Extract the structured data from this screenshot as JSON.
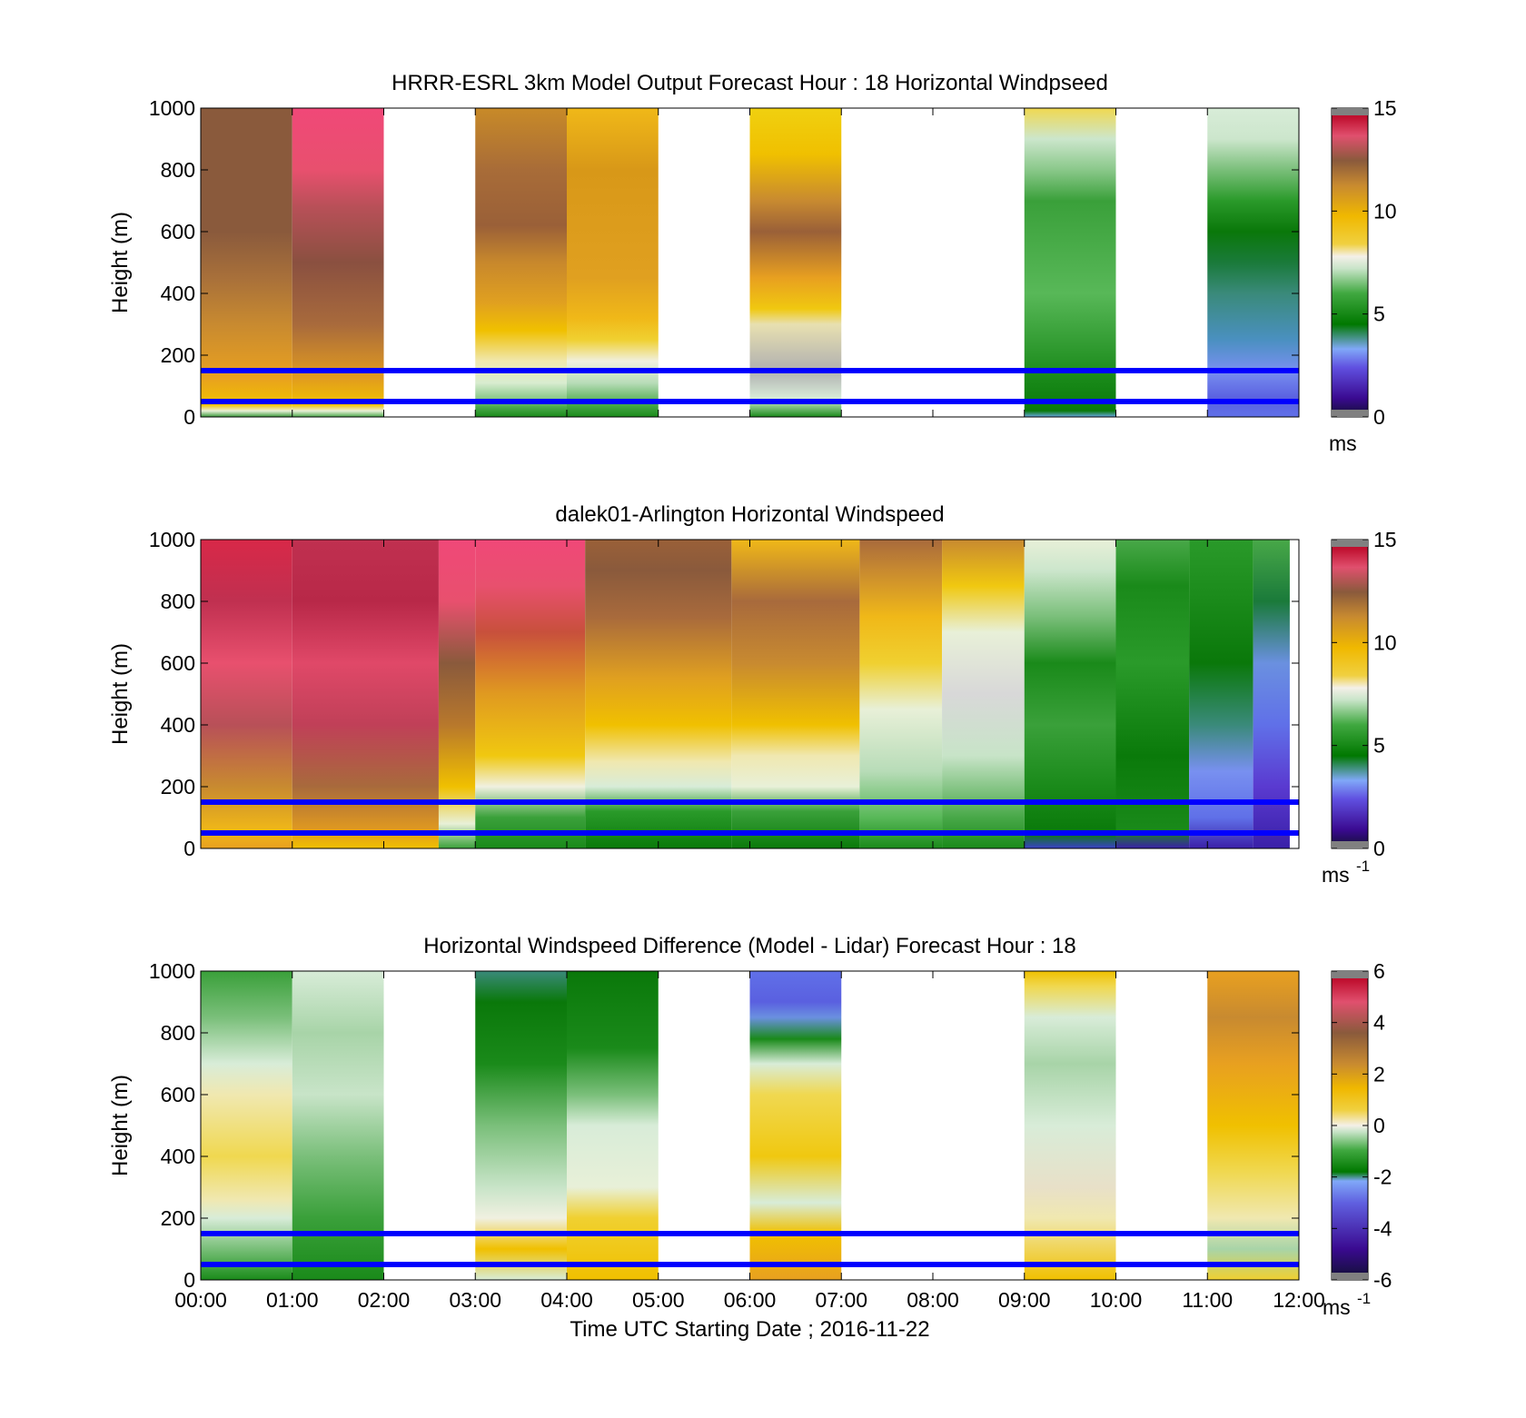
{
  "figure": {
    "xlabel": "Time UTC  Starting Date ; 2016-11-22",
    "x_ticks": [
      "00:00",
      "01:00",
      "02:00",
      "03:00",
      "04:00",
      "05:00",
      "06:00",
      "07:00",
      "08:00",
      "09:00",
      "10:00",
      "11:00",
      "12:00"
    ],
    "reference_lines": {
      "heights_m": [
        150,
        50
      ],
      "color": "#0000ff"
    }
  },
  "chart_data": [
    {
      "type": "heatmap",
      "title": "HRRR-ESRL 3km Model Output   Forecast Hour : 18 Horizontal Windpseed",
      "ylabel": "Height (m)",
      "ylim": [
        0,
        1000
      ],
      "y_ticks": [
        "0",
        "200",
        "400",
        "600",
        "800",
        "1000"
      ],
      "x_range_hours": [
        0,
        12
      ],
      "colorbar": {
        "range": [
          0,
          15
        ],
        "ticks": [
          "0",
          "5",
          "10",
          "15"
        ],
        "unit": "ms",
        "unit_sup": ""
      },
      "columns": [
        {
          "t0": 0,
          "t1": 1,
          "stops": [
            [
              0,
              "#3a9a3a"
            ],
            [
              20,
              "#e8f0d8"
            ],
            [
              40,
              "#f0c000"
            ],
            [
              130,
              "#e8a020"
            ],
            [
              300,
              "#c88a30"
            ],
            [
              450,
              "#a8703a"
            ],
            [
              600,
              "#8a5a3c"
            ],
            [
              1000,
              "#8a5a3c"
            ]
          ]
        },
        {
          "t0": 1,
          "t1": 2,
          "stops": [
            [
              0,
              "#4aa84a"
            ],
            [
              20,
              "#e8f0d8"
            ],
            [
              40,
              "#f0c000"
            ],
            [
              130,
              "#e09a20"
            ],
            [
              300,
              "#a86a3c"
            ],
            [
              500,
              "#8a5040"
            ],
            [
              680,
              "#b85058"
            ],
            [
              800,
              "#e8506e"
            ],
            [
              1000,
              "#f04878"
            ]
          ]
        },
        {
          "t0": 3,
          "t1": 4,
          "stops": [
            [
              0,
              "#1a8a1a"
            ],
            [
              30,
              "#48a848"
            ],
            [
              60,
              "#8ac88a"
            ],
            [
              110,
              "#d8ecd0"
            ],
            [
              180,
              "#f0e8b0"
            ],
            [
              280,
              "#f0c000"
            ],
            [
              370,
              "#e0a020"
            ],
            [
              500,
              "#c8882c"
            ],
            [
              620,
              "#9a6038"
            ],
            [
              800,
              "#a86c38"
            ],
            [
              1000,
              "#c88a28"
            ]
          ]
        },
        {
          "t0": 4,
          "t1": 5,
          "stops": [
            [
              0,
              "#1a8a1a"
            ],
            [
              40,
              "#48a848"
            ],
            [
              110,
              "#b8dcb8"
            ],
            [
              180,
              "#f0f0e0"
            ],
            [
              250,
              "#f0d030"
            ],
            [
              320,
              "#f0b818"
            ],
            [
              450,
              "#e0a020"
            ],
            [
              800,
              "#d89818"
            ],
            [
              1000,
              "#f0b818"
            ]
          ]
        },
        {
          "t0": 6,
          "t1": 7,
          "stops": [
            [
              0,
              "#1a8a1a"
            ],
            [
              30,
              "#7abf7a"
            ],
            [
              60,
              "#d8ecd8"
            ],
            [
              150,
              "#b0b0b0"
            ],
            [
              300,
              "#e8e0b0"
            ],
            [
              350,
              "#f0c810"
            ],
            [
              450,
              "#e8a020"
            ],
            [
              600,
              "#9a6038"
            ],
            [
              700,
              "#c88a30"
            ],
            [
              850,
              "#f0c000"
            ],
            [
              1000,
              "#f0d010"
            ]
          ]
        },
        {
          "t0": 9,
          "t1": 10,
          "stops": [
            [
              0,
              "#6aa8e8"
            ],
            [
              20,
              "#0a7a0a"
            ],
            [
              130,
              "#1a8a1a"
            ],
            [
              400,
              "#58b858"
            ],
            [
              700,
              "#3aa03a"
            ],
            [
              800,
              "#8ac88a"
            ],
            [
              900,
              "#cce6cc"
            ],
            [
              1000,
              "#f0d850"
            ]
          ]
        },
        {
          "t0": 11,
          "t1": 12,
          "stops": [
            [
              0,
              "#6070e8"
            ],
            [
              60,
              "#5a60e0"
            ],
            [
              150,
              "#7890f0"
            ],
            [
              250,
              "#4a90c0"
            ],
            [
              400,
              "#3a8a7a"
            ],
            [
              500,
              "#1a7a3a"
            ],
            [
              600,
              "#0a780a"
            ],
            [
              700,
              "#2a9a2a"
            ],
            [
              800,
              "#7abf7a"
            ],
            [
              900,
              "#cce6cc"
            ],
            [
              1000,
              "#d8ecd8"
            ]
          ]
        }
      ]
    },
    {
      "type": "heatmap",
      "title": "dalek01-Arlington  Horizontal Windspeed",
      "ylabel": "Height (m)",
      "ylim": [
        0,
        1000
      ],
      "y_ticks": [
        "0",
        "200",
        "400",
        "600",
        "800",
        "1000"
      ],
      "x_range_hours": [
        0,
        12
      ],
      "colorbar": {
        "range": [
          0,
          15
        ],
        "ticks": [
          "0",
          "5",
          "10",
          "15"
        ],
        "unit": "ms",
        "unit_sup": "-1"
      },
      "columns": [
        {
          "t0": 0.0,
          "t1": 1.0,
          "stops": [
            [
              0,
              "#e8a020"
            ],
            [
              60,
              "#f0b818"
            ],
            [
              200,
              "#c88a30"
            ],
            [
              400,
              "#b85058"
            ],
            [
              600,
              "#e8506e"
            ],
            [
              800,
              "#c03050"
            ],
            [
              1000,
              "#d82848"
            ]
          ]
        },
        {
          "t0": 1.0,
          "t1": 2.6,
          "stops": [
            [
              0,
              "#f0c000"
            ],
            [
              60,
              "#e09a20"
            ],
            [
              200,
              "#a86a3c"
            ],
            [
              400,
              "#c04058"
            ],
            [
              600,
              "#e04868"
            ],
            [
              800,
              "#b82848"
            ],
            [
              1000,
              "#c03050"
            ]
          ]
        },
        {
          "t0": 2.6,
          "t1": 3.0,
          "stops": [
            [
              0,
              "#3aa03a"
            ],
            [
              80,
              "#e8f0d8"
            ],
            [
              200,
              "#f0c000"
            ],
            [
              400,
              "#b8782c"
            ],
            [
              600,
              "#8a5a3c"
            ],
            [
              800,
              "#e8506e"
            ],
            [
              1000,
              "#f04878"
            ]
          ]
        },
        {
          "t0": 3.0,
          "t1": 4.2,
          "stops": [
            [
              0,
              "#1a8a1a"
            ],
            [
              100,
              "#3aa03a"
            ],
            [
              200,
              "#f0f0e0"
            ],
            [
              300,
              "#f0c810"
            ],
            [
              500,
              "#e09a20"
            ],
            [
              700,
              "#c8503c"
            ],
            [
              850,
              "#e8506e"
            ],
            [
              1000,
              "#f04878"
            ]
          ]
        },
        {
          "t0": 4.2,
          "t1": 5.8,
          "stops": [
            [
              0,
              "#0a7a0a"
            ],
            [
              120,
              "#2a9a2a"
            ],
            [
              200,
              "#d8ecd8"
            ],
            [
              280,
              "#f0e8b0"
            ],
            [
              400,
              "#f0c000"
            ],
            [
              550,
              "#e0a020"
            ],
            [
              750,
              "#a86a3c"
            ],
            [
              900,
              "#8a5a3c"
            ],
            [
              1000,
              "#9a6038"
            ]
          ]
        },
        {
          "t0": 5.8,
          "t1": 7.2,
          "stops": [
            [
              0,
              "#0a7a0a"
            ],
            [
              120,
              "#3aa03a"
            ],
            [
              200,
              "#e8f0d8"
            ],
            [
              300,
              "#f0e8b0"
            ],
            [
              400,
              "#f0c000"
            ],
            [
              600,
              "#c88a30"
            ],
            [
              800,
              "#a86a3c"
            ],
            [
              1000,
              "#f0b818"
            ]
          ]
        },
        {
          "t0": 7.2,
          "t1": 8.1,
          "stops": [
            [
              0,
              "#1a8a1a"
            ],
            [
              100,
              "#58b858"
            ],
            [
              250,
              "#b8dcb8"
            ],
            [
              450,
              "#e8f0d8"
            ],
            [
              600,
              "#f0d030"
            ],
            [
              750,
              "#f0b818"
            ],
            [
              900,
              "#c88a30"
            ],
            [
              1000,
              "#a86a3c"
            ]
          ]
        },
        {
          "t0": 8.1,
          "t1": 9.0,
          "stops": [
            [
              0,
              "#1a8a1a"
            ],
            [
              100,
              "#48a848"
            ],
            [
              300,
              "#c8e4c8"
            ],
            [
              500,
              "#d8d8d8"
            ],
            [
              700,
              "#e8f0d8"
            ],
            [
              850,
              "#f0c810"
            ],
            [
              1000,
              "#c88a30"
            ]
          ]
        },
        {
          "t0": 9.0,
          "t1": 10.0,
          "stops": [
            [
              0,
              "#3a40c8"
            ],
            [
              50,
              "#0a7a0a"
            ],
            [
              200,
              "#1a8a1a"
            ],
            [
              400,
              "#3aa03a"
            ],
            [
              600,
              "#1a8a1a"
            ],
            [
              750,
              "#7abf7a"
            ],
            [
              900,
              "#cce6cc"
            ],
            [
              1000,
              "#e8f0d8"
            ]
          ]
        },
        {
          "t0": 10.0,
          "t1": 10.8,
          "stops": [
            [
              0,
              "#3a20a8"
            ],
            [
              60,
              "#1a8a1a"
            ],
            [
              300,
              "#0a7a0a"
            ],
            [
              600,
              "#2a9a2a"
            ],
            [
              850,
              "#1a8a1a"
            ],
            [
              1000,
              "#48a848"
            ]
          ]
        },
        {
          "t0": 10.8,
          "t1": 11.5,
          "stops": [
            [
              0,
              "#3a20a8"
            ],
            [
              100,
              "#6070e8"
            ],
            [
              250,
              "#7890f0"
            ],
            [
              400,
              "#3a8a7a"
            ],
            [
              600,
              "#0a780a"
            ],
            [
              800,
              "#1a8a1a"
            ],
            [
              1000,
              "#2a9a2a"
            ]
          ]
        },
        {
          "t0": 11.5,
          "t1": 11.9,
          "stops": [
            [
              0,
              "#3a20a8"
            ],
            [
              200,
              "#5a3ad0"
            ],
            [
              400,
              "#6070e8"
            ],
            [
              600,
              "#6a90e0"
            ],
            [
              800,
              "#1a7a3a"
            ],
            [
              1000,
              "#48a848"
            ]
          ]
        }
      ]
    },
    {
      "type": "heatmap",
      "title": "Horizontal Windspeed Difference (Model - Lidar) Forecast Hour : 18",
      "ylabel": "Height (m)",
      "ylim": [
        0,
        1000
      ],
      "y_ticks": [
        "0",
        "200",
        "400",
        "600",
        "800",
        "1000"
      ],
      "x_range_hours": [
        0,
        12
      ],
      "colorbar": {
        "range": [
          -6,
          6
        ],
        "ticks": [
          "-6",
          "-4",
          "-2",
          "0",
          "2",
          "4",
          "6"
        ],
        "unit": "ms",
        "unit_sup": "-1"
      },
      "columns": [
        {
          "t0": 0,
          "t1": 1,
          "stops": [
            [
              0,
              "#1a8a1a"
            ],
            [
              50,
              "#48a848"
            ],
            [
              200,
              "#d8ecd8"
            ],
            [
              260,
              "#f0e8b0"
            ],
            [
              400,
              "#f0d850"
            ],
            [
              600,
              "#f0e8b0"
            ],
            [
              700,
              "#d8ecd8"
            ],
            [
              850,
              "#7abf7a"
            ],
            [
              1000,
              "#3aa03a"
            ]
          ]
        },
        {
          "t0": 1,
          "t1": 2,
          "stops": [
            [
              0,
              "#1a8a1a"
            ],
            [
              200,
              "#3aa03a"
            ],
            [
              400,
              "#7abf7a"
            ],
            [
              600,
              "#c8e4c8"
            ],
            [
              800,
              "#a8d4a8"
            ],
            [
              1000,
              "#d8ecd8"
            ]
          ]
        },
        {
          "t0": 3,
          "t1": 4,
          "stops": [
            [
              0,
              "#d8ecd8"
            ],
            [
              100,
              "#f0c000"
            ],
            [
              200,
              "#f0f0e0"
            ],
            [
              300,
              "#c8e4c8"
            ],
            [
              500,
              "#7abf7a"
            ],
            [
              700,
              "#1a8a1a"
            ],
            [
              900,
              "#0a780a"
            ],
            [
              1000,
              "#3a8a7a"
            ]
          ]
        },
        {
          "t0": 4,
          "t1": 5,
          "stops": [
            [
              0,
              "#f0c000"
            ],
            [
              200,
              "#f0d030"
            ],
            [
              300,
              "#e8f0d8"
            ],
            [
              500,
              "#d8ecd8"
            ],
            [
              600,
              "#7abf7a"
            ],
            [
              750,
              "#1a8a1a"
            ],
            [
              1000,
              "#0a780a"
            ]
          ]
        },
        {
          "t0": 6,
          "t1": 7,
          "stops": [
            [
              0,
              "#e8a020"
            ],
            [
              150,
              "#f0c000"
            ],
            [
              250,
              "#d8ecd8"
            ],
            [
              400,
              "#f0c810"
            ],
            [
              600,
              "#f0d850"
            ],
            [
              700,
              "#d8ecd8"
            ],
            [
              780,
              "#1a8a1a"
            ],
            [
              850,
              "#6a90e0"
            ],
            [
              900,
              "#5a60e0"
            ],
            [
              1000,
              "#6070e8"
            ]
          ]
        },
        {
          "t0": 9,
          "t1": 10,
          "stops": [
            [
              0,
              "#f0c000"
            ],
            [
              200,
              "#f0e8b0"
            ],
            [
              300,
              "#e8e0c8"
            ],
            [
              500,
              "#d8ecd8"
            ],
            [
              700,
              "#a8d4a8"
            ],
            [
              850,
              "#d8ecd8"
            ],
            [
              950,
              "#f0d850"
            ],
            [
              1000,
              "#f0c000"
            ]
          ]
        },
        {
          "t0": 11,
          "t1": 12,
          "stops": [
            [
              0,
              "#f0d030"
            ],
            [
              100,
              "#a8d4a8"
            ],
            [
              200,
              "#f0e8b0"
            ],
            [
              350,
              "#f0d850"
            ],
            [
              500,
              "#f0c000"
            ],
            [
              700,
              "#e8a020"
            ],
            [
              850,
              "#c88a30"
            ],
            [
              1000,
              "#e8a020"
            ]
          ]
        }
      ]
    }
  ]
}
